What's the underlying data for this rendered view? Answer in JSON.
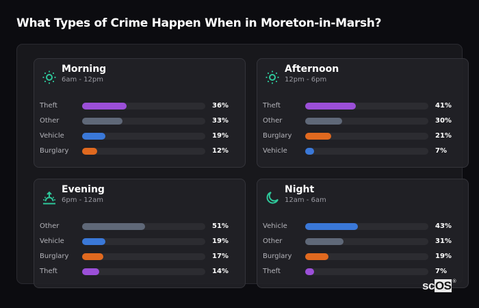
{
  "title": "What Types of Crime Happen When in Moreton-in-Marsh?",
  "colors": {
    "Theft": "#9b4fd8",
    "Other": "#5f6878",
    "Vehicle": "#3a78d8",
    "Burglary": "#e0691f",
    "icon": "#2ec79a"
  },
  "logo": {
    "sc": "sc",
    "os": "OS",
    "mark": "®"
  },
  "cards": [
    {
      "name": "Morning",
      "range": "6am - 12pm",
      "icon": "sun-icon",
      "rows": [
        {
          "label": "Theft",
          "value": 36,
          "pct": "36%"
        },
        {
          "label": "Other",
          "value": 33,
          "pct": "33%"
        },
        {
          "label": "Vehicle",
          "value": 19,
          "pct": "19%"
        },
        {
          "label": "Burglary",
          "value": 12,
          "pct": "12%"
        }
      ]
    },
    {
      "name": "Afternoon",
      "range": "12pm - 6pm",
      "icon": "sun-icon",
      "rows": [
        {
          "label": "Theft",
          "value": 41,
          "pct": "41%"
        },
        {
          "label": "Other",
          "value": 30,
          "pct": "30%"
        },
        {
          "label": "Burglary",
          "value": 21,
          "pct": "21%"
        },
        {
          "label": "Vehicle",
          "value": 7,
          "pct": "7%"
        }
      ]
    },
    {
      "name": "Evening",
      "range": "6pm - 12am",
      "icon": "sunset-icon",
      "rows": [
        {
          "label": "Other",
          "value": 51,
          "pct": "51%"
        },
        {
          "label": "Vehicle",
          "value": 19,
          "pct": "19%"
        },
        {
          "label": "Burglary",
          "value": 17,
          "pct": "17%"
        },
        {
          "label": "Theft",
          "value": 14,
          "pct": "14%"
        }
      ]
    },
    {
      "name": "Night",
      "range": "12am - 6am",
      "icon": "moon-icon",
      "rows": [
        {
          "label": "Vehicle",
          "value": 43,
          "pct": "43%"
        },
        {
          "label": "Other",
          "value": 31,
          "pct": "31%"
        },
        {
          "label": "Burglary",
          "value": 19,
          "pct": "19%"
        },
        {
          "label": "Theft",
          "value": 7,
          "pct": "7%"
        }
      ]
    }
  ],
  "chart_data": [
    {
      "type": "bar",
      "title": "Morning",
      "subtitle": "6am - 12pm",
      "orientation": "horizontal",
      "categories": [
        "Theft",
        "Other",
        "Vehicle",
        "Burglary"
      ],
      "values": [
        36,
        33,
        19,
        12
      ],
      "unit": "%",
      "xlim": [
        0,
        100
      ]
    },
    {
      "type": "bar",
      "title": "Afternoon",
      "subtitle": "12pm - 6pm",
      "orientation": "horizontal",
      "categories": [
        "Theft",
        "Other",
        "Burglary",
        "Vehicle"
      ],
      "values": [
        41,
        30,
        21,
        7
      ],
      "unit": "%",
      "xlim": [
        0,
        100
      ]
    },
    {
      "type": "bar",
      "title": "Evening",
      "subtitle": "6pm - 12am",
      "orientation": "horizontal",
      "categories": [
        "Other",
        "Vehicle",
        "Burglary",
        "Theft"
      ],
      "values": [
        51,
        19,
        17,
        14
      ],
      "unit": "%",
      "xlim": [
        0,
        100
      ]
    },
    {
      "type": "bar",
      "title": "Night",
      "subtitle": "12am - 6am",
      "orientation": "horizontal",
      "categories": [
        "Vehicle",
        "Other",
        "Burglary",
        "Theft"
      ],
      "values": [
        43,
        31,
        19,
        7
      ],
      "unit": "%",
      "xlim": [
        0,
        100
      ]
    }
  ]
}
